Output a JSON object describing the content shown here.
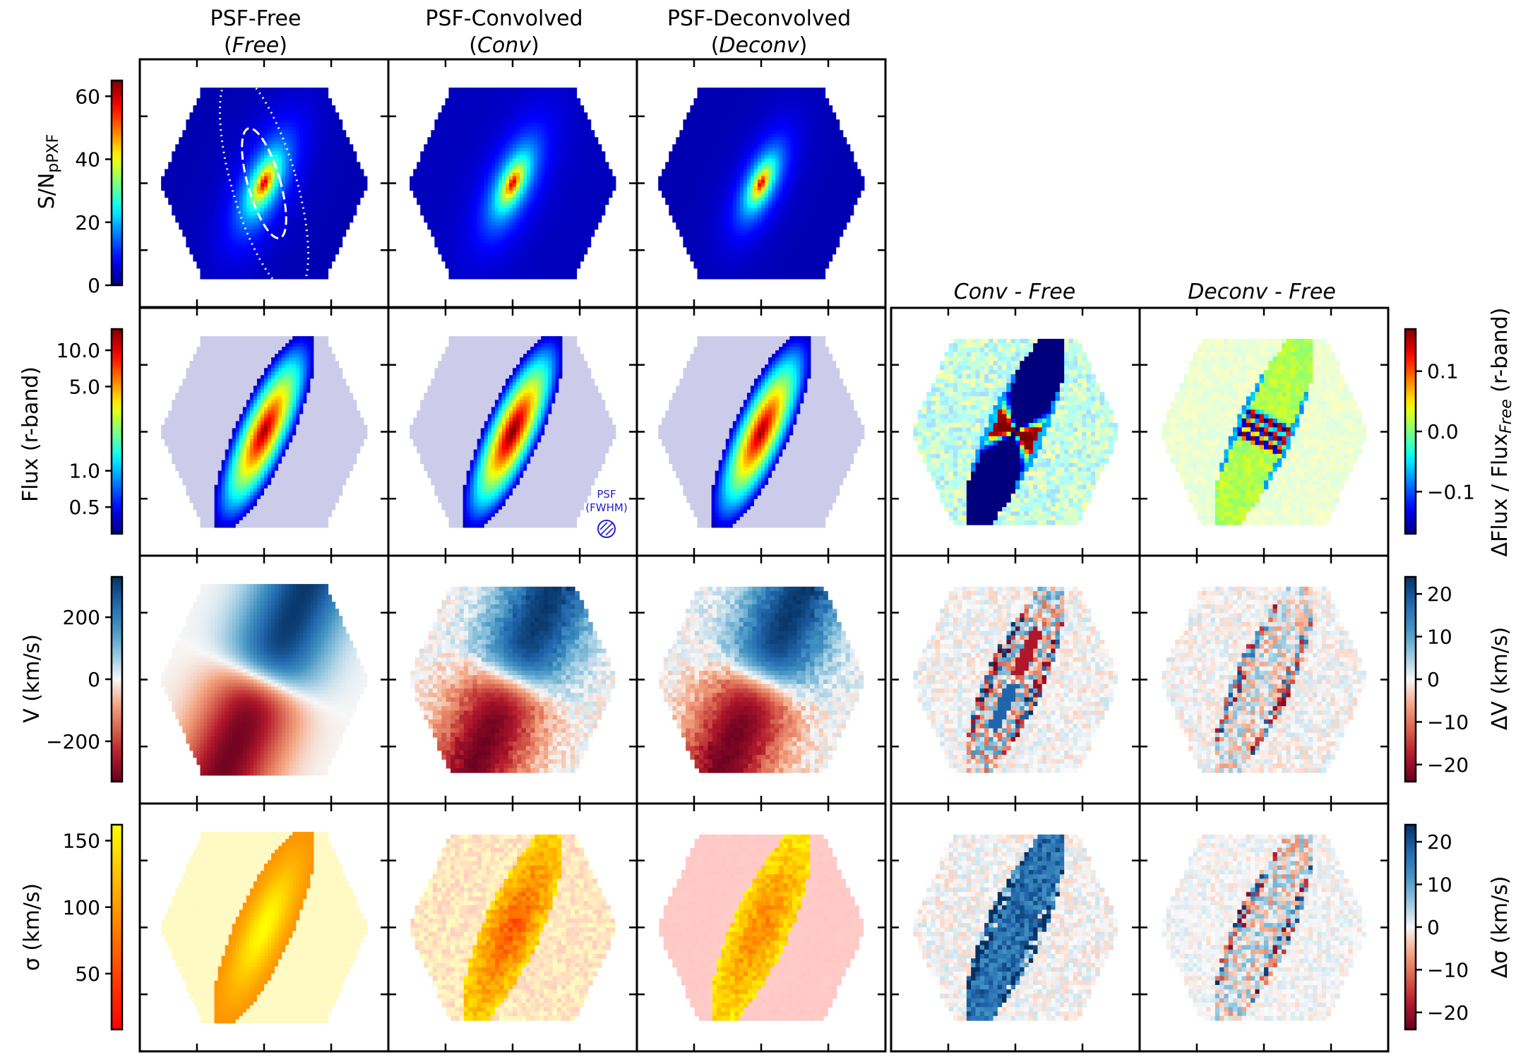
{
  "columns": [
    {
      "title": "PSF-Free",
      "subtitle": "Free"
    },
    {
      "title": "PSF-Convolved",
      "subtitle": "Conv"
    },
    {
      "title": "PSF-Deconvolved",
      "subtitle": "Deconv"
    },
    {
      "title": "Conv - Free",
      "subtitle": ""
    },
    {
      "title": "Deconv - Free",
      "subtitle": ""
    }
  ],
  "psf_note": {
    "line1": "PSF",
    "line2": "(FWHM)"
  },
  "colors": {
    "jet": [
      "#00007f",
      "#0000ff",
      "#007fff",
      "#00ffff",
      "#7fff7f",
      "#ffff00",
      "#ff7f00",
      "#ff0000",
      "#7f0000"
    ],
    "rdbu": [
      "#053061",
      "#2166ac",
      "#4393c3",
      "#92c5de",
      "#f7f7f7",
      "#f4a582",
      "#d6604d",
      "#b2182b",
      "#67001f"
    ],
    "autumn": [
      "#ffff00",
      "#ff8000",
      "#ff0000"
    ],
    "mask_blue": "#ccccea",
    "pale_yellow": "#fff9c4"
  },
  "chart_data": [
    {
      "type": "heatmap",
      "row": "snr",
      "ylabel": "S/N",
      "ylabel_sub": "pPXF",
      "cmap": "jet",
      "clim": [
        0,
        65
      ],
      "ticks": [
        0,
        20,
        40,
        60
      ],
      "tick_labels": [
        "0",
        "20",
        "40",
        "60"
      ]
    },
    {
      "type": "heatmap",
      "row": "flux",
      "ylabel": "Flux (r-band)",
      "cmap": "jet",
      "scale": "log",
      "clim": [
        0.3,
        15
      ],
      "ticks": [
        0.5,
        1.0,
        5.0,
        10.0
      ],
      "tick_labels": [
        "0.5",
        "1.0",
        "5.0",
        "10.0"
      ]
    },
    {
      "type": "heatmap",
      "row": "flux_diff",
      "ylabel": "ΔFlux / Flux",
      "ylabel_sub": "Free",
      "ylabel_suffix": "(r-band)",
      "cmap": "jet",
      "clim": [
        -0.17,
        0.17
      ],
      "ticks": [
        -0.1,
        0.0,
        0.1
      ],
      "tick_labels": [
        "−0.1",
        "0.0",
        "0.1"
      ]
    },
    {
      "type": "heatmap",
      "row": "velocity",
      "ylabel": "V (km/s)",
      "cmap": "rdbu",
      "clim": [
        -330,
        330
      ],
      "ticks": [
        -200,
        0,
        200
      ],
      "tick_labels": [
        "−200",
        "0",
        "200"
      ]
    },
    {
      "type": "heatmap",
      "row": "velocity_diff",
      "ylabel": "ΔV (km/s)",
      "cmap": "rdbu",
      "clim": [
        -24,
        24
      ],
      "ticks": [
        -20,
        -10,
        0,
        10,
        20
      ],
      "tick_labels": [
        "−20",
        "−10",
        "0",
        "10",
        "20"
      ]
    },
    {
      "type": "heatmap",
      "row": "sigma",
      "ylabel": "σ (km/s)",
      "cmap": "autumn_r",
      "clim": [
        8,
        162
      ],
      "ticks": [
        50,
        100,
        150
      ],
      "tick_labels": [
        "50",
        "100",
        "150"
      ]
    },
    {
      "type": "heatmap",
      "row": "sigma_diff",
      "ylabel": "Δσ (km/s)",
      "cmap": "rdbu",
      "clim": [
        -24,
        24
      ],
      "ticks": [
        -20,
        -10,
        0,
        10,
        20
      ],
      "tick_labels": [
        "−20",
        "−10",
        "0",
        "10",
        "20"
      ]
    }
  ]
}
